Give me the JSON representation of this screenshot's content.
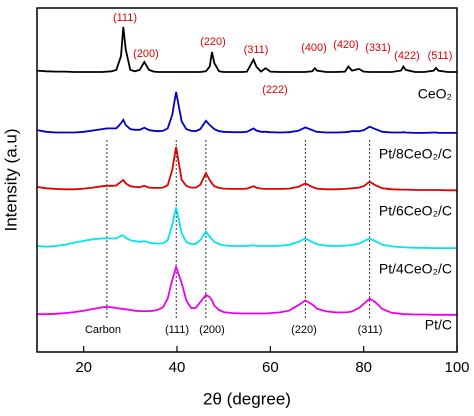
{
  "chart_data": {
    "type": "line",
    "x_label": "2θ (degree)",
    "y_label": "Intensity (a.u)",
    "xlim": [
      10,
      100
    ],
    "xticks": [
      20,
      40,
      60,
      80,
      100
    ],
    "ylim": [
      0,
      100
    ],
    "ceo2_peak_labels": [
      "(111)",
      "(200)",
      "(220)",
      "(311)",
      "(222)",
      "(400)",
      "(420)",
      "(331)",
      "(422)",
      "(511)"
    ],
    "pt_peak_labels": [
      "Carbon",
      "(111)",
      "(200)",
      "(220)",
      "(311)"
    ],
    "x": [
      10,
      12,
      14,
      16,
      18,
      20,
      22,
      24,
      25,
      26,
      27,
      28,
      28.5,
      29,
      30,
      31,
      32,
      33,
      34,
      35,
      36,
      37,
      38,
      39,
      39.8,
      41,
      42,
      43,
      44,
      45,
      46.2,
      47,
      47.5,
      48,
      49,
      50,
      52,
      54,
      55,
      56.4,
      57,
      58,
      59,
      60,
      62,
      64,
      66,
      67.5,
      69,
      69.5,
      70,
      72,
      74,
      76,
      76.7,
      77.5,
      79,
      80,
      81.3,
      82.5,
      84,
      86,
      88,
      88.5,
      89,
      91,
      93,
      95,
      95.5,
      96,
      98,
      100
    ],
    "series": [
      {
        "name": "CeO₂",
        "color": "#000000",
        "values": [
          81.8,
          81.6,
          81.5,
          81.5,
          81.4,
          81.4,
          81.4,
          81.4,
          81.5,
          81.6,
          82,
          86,
          94.5,
          88,
          82,
          81.6,
          82,
          84.3,
          82,
          81.5,
          81.4,
          81.4,
          81.4,
          81.4,
          81.4,
          81.4,
          81.4,
          81.4,
          81.4,
          81.4,
          81.6,
          83,
          87.2,
          84,
          81.6,
          81.4,
          81.4,
          81.4,
          81.5,
          85,
          83,
          81.5,
          82.5,
          81.5,
          81.4,
          81.4,
          81.4,
          81.4,
          81.6,
          82.5,
          81.8,
          81.4,
          81.4,
          81.5,
          83,
          81.8,
          82.3,
          81.5,
          81.4,
          81.4,
          81.4,
          81.4,
          81.8,
          83,
          82,
          81.4,
          81.4,
          81.8,
          82.6,
          81.8,
          81.4,
          81.4
        ]
      },
      {
        "name": "Pt/8CeO₂/C",
        "color": "#0000cc",
        "values": [
          64.5,
          64,
          63.8,
          63.8,
          63.8,
          64,
          64.4,
          64.8,
          65,
          65,
          65,
          66.5,
          67.5,
          66,
          64.8,
          64.6,
          64.6,
          65.2,
          64.5,
          64.3,
          64.2,
          64.3,
          65,
          69,
          75.6,
          67,
          64.8,
          64.3,
          64.2,
          64.8,
          67.2,
          66,
          65.4,
          64.8,
          64.2,
          64,
          63.9,
          63.9,
          64,
          65,
          64.4,
          64,
          64,
          63.9,
          63.8,
          63.9,
          64.3,
          65.3,
          64.5,
          64.2,
          64,
          63.8,
          63.8,
          63.9,
          64,
          64.2,
          64.2,
          64.5,
          65.5,
          64.8,
          64,
          63.8,
          63.8,
          63.9,
          63.8,
          63.7,
          63.7,
          63.8,
          63.8,
          63.7,
          63.7,
          63.7
        ]
      },
      {
        "name": "Pt/6CeO₂/C",
        "color": "#e00000",
        "values": [
          48,
          47.6,
          47.4,
          47.3,
          47.3,
          47.5,
          47.8,
          48.2,
          48.3,
          48.3,
          48.4,
          49.5,
          50,
          49,
          48.2,
          48,
          47.9,
          48.3,
          47.8,
          47.7,
          47.7,
          47.8,
          48.5,
          53,
          59.6,
          50,
          48.3,
          47.8,
          47.8,
          48.6,
          52,
          50,
          49,
          48.2,
          47.7,
          47.5,
          47.4,
          47.4,
          47.5,
          48.2,
          47.8,
          47.5,
          47.4,
          47.4,
          47.4,
          47.5,
          48,
          49,
          48,
          47.7,
          47.5,
          47.3,
          47.3,
          47.4,
          47.5,
          47.6,
          47.8,
          48.2,
          49.5,
          48.5,
          47.6,
          47.3,
          47.2,
          47.2,
          47.2,
          47.1,
          47.1,
          47.1,
          47.1,
          47.1,
          47,
          47
        ]
      },
      {
        "name": "Pt/4CeO₂/C",
        "color": "#00e5ee",
        "values": [
          30.8,
          30.6,
          30.8,
          31.2,
          31.8,
          32.3,
          32.8,
          33,
          33.1,
          33,
          33,
          33.8,
          33.9,
          33.2,
          32.5,
          32.2,
          32,
          32.2,
          31.8,
          31.6,
          31.5,
          31.6,
          32.5,
          37,
          42,
          34.5,
          32,
          31.4,
          31.4,
          32.5,
          35,
          33.5,
          32.8,
          32,
          31.4,
          31,
          30.8,
          30.8,
          30.8,
          31,
          30.9,
          30.8,
          30.8,
          30.8,
          30.9,
          31.1,
          32,
          33,
          32,
          31.6,
          31.3,
          30.9,
          30.8,
          30.9,
          31,
          31.1,
          31.5,
          32.2,
          33,
          32.2,
          31.2,
          30.7,
          30.5,
          30.5,
          30.4,
          30.3,
          30.3,
          30.2,
          30.2,
          30.2,
          30.2,
          30.2
        ]
      },
      {
        "name": "Pt/C",
        "color": "#ee00ee",
        "values": [
          11,
          11,
          11.1,
          11.3,
          11.6,
          12,
          12.5,
          13,
          13.1,
          13,
          12.8,
          12.6,
          12.5,
          12.4,
          12.2,
          12,
          11.9,
          11.9,
          11.9,
          12,
          12.3,
          13,
          15.5,
          21,
          24.7,
          20,
          15,
          12.8,
          12.8,
          14.5,
          16.6,
          16,
          15,
          13.5,
          12.2,
          11.6,
          11.3,
          11.2,
          11.2,
          11.2,
          11.2,
          11.2,
          11.2,
          11.3,
          11.5,
          12,
          13.6,
          15,
          13.8,
          13.2,
          12.6,
          11.8,
          11.5,
          11.5,
          11.6,
          11.8,
          12.8,
          14,
          15.5,
          14.5,
          12.5,
          11.4,
          11.1,
          11,
          11,
          10.9,
          10.9,
          10.8,
          10.8,
          10.8,
          10.8,
          10.8
        ]
      }
    ]
  }
}
